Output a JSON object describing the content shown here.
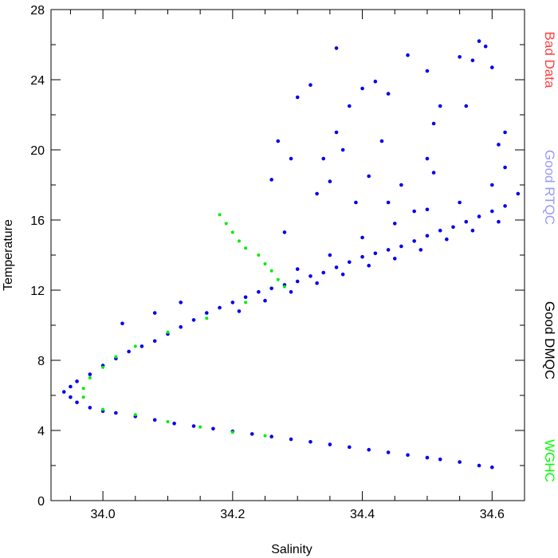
{
  "chart_data": {
    "type": "scatter",
    "xlabel": "Salinity",
    "ylabel": "Temperature",
    "xlim": [
      33.92,
      34.65
    ],
    "ylim": [
      0,
      28
    ],
    "xticks": [
      "34.0",
      "34.2",
      "34.4",
      "34.6"
    ],
    "xtick_values": [
      34.0,
      34.2,
      34.4,
      34.6
    ],
    "yticks": [
      "0",
      "4",
      "8",
      "12",
      "16",
      "20",
      "24",
      "28"
    ],
    "ytick_values": [
      0,
      4,
      8,
      12,
      16,
      20,
      24,
      28
    ],
    "grid": false,
    "legend_position": "right",
    "legend": [
      {
        "label": "Bad Data",
        "color": "#ff4040"
      },
      {
        "label": "Good RTQC",
        "color": "#9999ff"
      },
      {
        "label": "Good DMQC",
        "color": "#000000"
      },
      {
        "label": "WGHC",
        "color": "#00ff00"
      }
    ],
    "series": [
      {
        "name": "Good RTQC",
        "color": "#0000ee",
        "points": [
          [
            34.6,
            1.9
          ],
          [
            34.58,
            2.0
          ],
          [
            34.55,
            2.2
          ],
          [
            34.52,
            2.35
          ],
          [
            34.5,
            2.45
          ],
          [
            34.47,
            2.6
          ],
          [
            34.44,
            2.75
          ],
          [
            34.41,
            2.9
          ],
          [
            34.38,
            3.05
          ],
          [
            34.35,
            3.2
          ],
          [
            34.32,
            3.35
          ],
          [
            34.29,
            3.5
          ],
          [
            34.26,
            3.65
          ],
          [
            34.23,
            3.8
          ],
          [
            34.2,
            3.95
          ],
          [
            34.17,
            4.1
          ],
          [
            34.14,
            4.25
          ],
          [
            34.11,
            4.4
          ],
          [
            34.08,
            4.6
          ],
          [
            34.05,
            4.8
          ],
          [
            34.02,
            5.0
          ],
          [
            34.0,
            5.1
          ],
          [
            33.98,
            5.3
          ],
          [
            33.96,
            5.6
          ],
          [
            33.95,
            5.9
          ],
          [
            33.94,
            6.2
          ],
          [
            33.95,
            6.5
          ],
          [
            33.96,
            6.8
          ],
          [
            33.98,
            7.2
          ],
          [
            34.0,
            7.7
          ],
          [
            34.02,
            8.1
          ],
          [
            34.04,
            8.5
          ],
          [
            34.06,
            8.8
          ],
          [
            34.08,
            9.1
          ],
          [
            34.1,
            9.5
          ],
          [
            34.12,
            9.9
          ],
          [
            34.14,
            10.3
          ],
          [
            34.16,
            10.7
          ],
          [
            34.18,
            11.0
          ],
          [
            34.2,
            11.3
          ],
          [
            34.22,
            11.6
          ],
          [
            34.24,
            11.9
          ],
          [
            34.26,
            12.1
          ],
          [
            34.28,
            12.3
          ],
          [
            34.3,
            12.5
          ],
          [
            34.32,
            12.8
          ],
          [
            34.34,
            13.0
          ],
          [
            34.36,
            13.3
          ],
          [
            34.38,
            13.6
          ],
          [
            34.4,
            13.9
          ],
          [
            34.42,
            14.1
          ],
          [
            34.44,
            14.3
          ],
          [
            34.46,
            14.5
          ],
          [
            34.48,
            14.8
          ],
          [
            34.5,
            15.1
          ],
          [
            34.52,
            15.4
          ],
          [
            34.54,
            15.6
          ],
          [
            34.56,
            15.9
          ],
          [
            34.58,
            16.2
          ],
          [
            34.6,
            16.5
          ],
          [
            34.62,
            16.8
          ],
          [
            34.64,
            17.5
          ],
          [
            34.21,
            10.8
          ],
          [
            34.25,
            11.4
          ],
          [
            34.29,
            11.9
          ],
          [
            34.33,
            12.4
          ],
          [
            34.37,
            12.9
          ],
          [
            34.41,
            13.4
          ],
          [
            34.45,
            13.8
          ],
          [
            34.49,
            14.3
          ],
          [
            34.53,
            14.9
          ],
          [
            34.57,
            15.4
          ],
          [
            34.61,
            15.9
          ],
          [
            34.3,
            13.2
          ],
          [
            34.35,
            14.0
          ],
          [
            34.4,
            15.0
          ],
          [
            34.45,
            15.8
          ],
          [
            34.5,
            16.6
          ],
          [
            34.55,
            17.0
          ],
          [
            34.6,
            18.0
          ],
          [
            34.62,
            19.0
          ],
          [
            34.34,
            19.5
          ],
          [
            34.36,
            21.0
          ],
          [
            34.38,
            22.5
          ],
          [
            34.4,
            23.5
          ],
          [
            34.42,
            23.9
          ],
          [
            34.44,
            23.2
          ],
          [
            34.33,
            17.5
          ],
          [
            34.35,
            18.2
          ],
          [
            34.37,
            20.0
          ],
          [
            34.39,
            17.0
          ],
          [
            34.41,
            18.5
          ],
          [
            34.43,
            20.5
          ],
          [
            34.27,
            20.5
          ],
          [
            34.29,
            19.5
          ],
          [
            34.3,
            23.0
          ],
          [
            34.32,
            23.7
          ],
          [
            34.36,
            25.8
          ],
          [
            34.47,
            25.4
          ],
          [
            34.5,
            24.5
          ],
          [
            34.51,
            21.5
          ],
          [
            34.52,
            22.5
          ],
          [
            34.55,
            25.3
          ],
          [
            34.57,
            25.1
          ],
          [
            34.58,
            26.2
          ],
          [
            34.59,
            25.9
          ],
          [
            34.6,
            24.7
          ],
          [
            34.56,
            22.5
          ],
          [
            34.62,
            21.0
          ],
          [
            34.61,
            20.3
          ],
          [
            34.5,
            19.5
          ],
          [
            34.51,
            18.7
          ],
          [
            34.46,
            18.0
          ],
          [
            34.44,
            17.0
          ],
          [
            34.48,
            16.5
          ],
          [
            34.26,
            18.3
          ],
          [
            34.28,
            15.3
          ],
          [
            34.03,
            10.1
          ],
          [
            34.08,
            10.7
          ],
          [
            34.12,
            11.3
          ]
        ]
      },
      {
        "name": "WGHC",
        "color": "#00ee00",
        "points": [
          [
            34.18,
            16.3
          ],
          [
            34.19,
            15.8
          ],
          [
            34.2,
            15.3
          ],
          [
            34.21,
            14.8
          ],
          [
            34.22,
            14.4
          ],
          [
            34.24,
            14.0
          ],
          [
            34.25,
            13.5
          ],
          [
            34.26,
            13.1
          ],
          [
            34.27,
            12.6
          ],
          [
            34.28,
            12.2
          ],
          [
            34.22,
            11.3
          ],
          [
            34.16,
            10.4
          ],
          [
            34.1,
            9.6
          ],
          [
            34.05,
            8.8
          ],
          [
            34.02,
            8.2
          ],
          [
            34.0,
            7.6
          ],
          [
            33.98,
            7.0
          ],
          [
            33.97,
            6.4
          ],
          [
            33.97,
            5.9
          ],
          [
            34.0,
            5.2
          ],
          [
            34.05,
            4.9
          ],
          [
            34.1,
            4.5
          ],
          [
            34.15,
            4.2
          ],
          [
            34.2,
            3.9
          ],
          [
            34.25,
            3.7
          ]
        ]
      }
    ]
  }
}
